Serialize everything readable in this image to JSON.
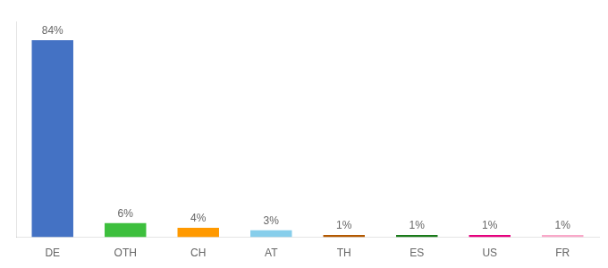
{
  "chart_data": {
    "type": "bar",
    "categories": [
      "DE",
      "OTH",
      "CH",
      "AT",
      "TH",
      "ES",
      "US",
      "FR"
    ],
    "values": [
      84,
      6,
      4,
      3,
      1,
      1,
      1,
      1
    ],
    "value_labels": [
      "84%",
      "6%",
      "4%",
      "3%",
      "1%",
      "1%",
      "1%",
      "1%"
    ],
    "colors": [
      "#4472c4",
      "#3dbf3d",
      "#ff9900",
      "#87ceeb",
      "#b35900",
      "#1a7a1a",
      "#e6007e",
      "#f9a8c9"
    ],
    "ylim": [
      0,
      92
    ],
    "grid": false,
    "tick_labels": "x",
    "data_labels": true
  }
}
